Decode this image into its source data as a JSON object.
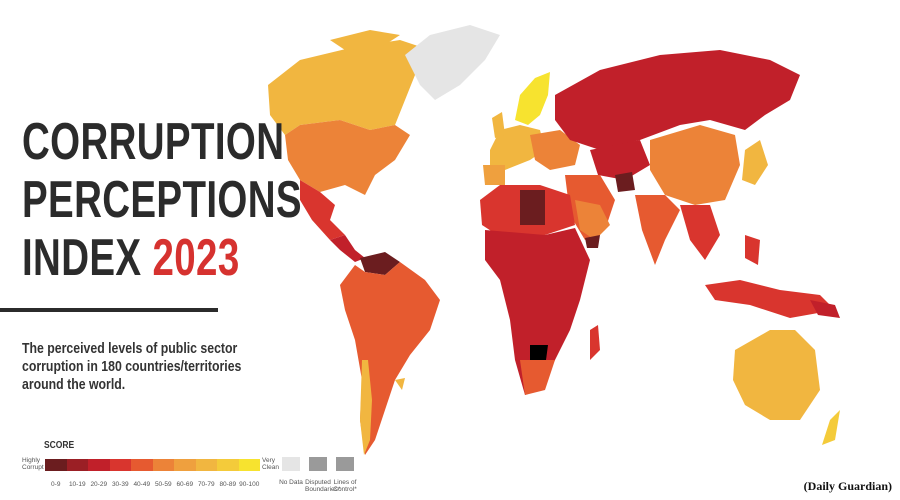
{
  "title": {
    "lines": [
      "CORRUPTION",
      "PERCEPTIONS",
      "INDEX"
    ],
    "year": "2023"
  },
  "subtitle": {
    "lines": [
      "The perceived levels of public sector",
      "corruption in 180 countries/territories",
      "around the world."
    ]
  },
  "legend": {
    "title": "SCORE",
    "low_label": "Highly Corrupt",
    "high_label": "Very Clean",
    "bins": [
      {
        "label": "0-9",
        "color": "#6b1d1f"
      },
      {
        "label": "10-19",
        "color": "#9b1f25"
      },
      {
        "label": "20-29",
        "color": "#c1202a"
      },
      {
        "label": "30-39",
        "color": "#d9352e"
      },
      {
        "label": "40-49",
        "color": "#e65a30"
      },
      {
        "label": "50-59",
        "color": "#ec8338"
      },
      {
        "label": "60-69",
        "color": "#efa03e"
      },
      {
        "label": "70-79",
        "color": "#f1b640"
      },
      {
        "label": "80-89",
        "color": "#f4cb3a"
      },
      {
        "label": "90-100",
        "color": "#f7e32f"
      }
    ],
    "extras": [
      {
        "label": "No Data",
        "color": "#e5e5e5"
      },
      {
        "label": "Disputed Boundaries*",
        "color": "#9a9a9a"
      },
      {
        "label": "Lines of Control*",
        "color": "#9a9a9a"
      }
    ]
  },
  "credit": "(Daily Guardian)"
}
